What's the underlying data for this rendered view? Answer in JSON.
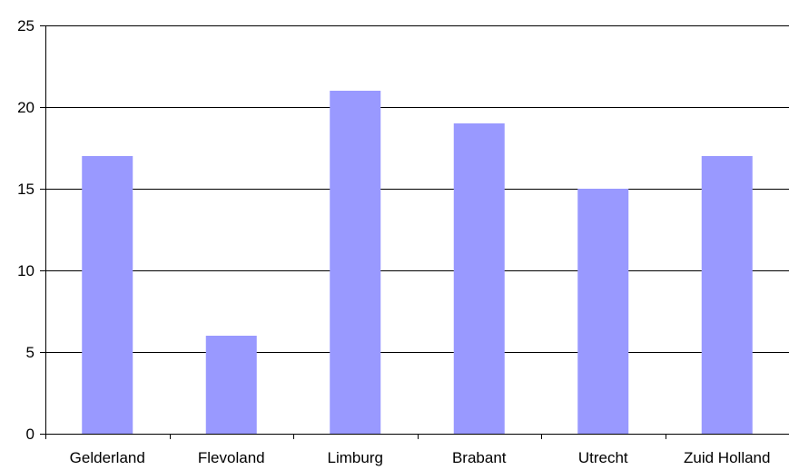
{
  "chart_data": {
    "type": "bar",
    "categories": [
      "Gelderland",
      "Flevoland",
      "Limburg",
      "Brabant",
      "Utrecht",
      "Zuid Holland"
    ],
    "values": [
      17,
      6,
      21,
      19,
      15,
      17
    ],
    "ylim": [
      0,
      25
    ],
    "yticks": [
      0,
      5,
      10,
      15,
      20,
      25
    ],
    "ytick_labels": [
      "0",
      "5",
      "10",
      "15",
      "20",
      "25"
    ],
    "grid": true,
    "legend": false,
    "colors": {
      "bar": "#9999ff",
      "grid": "#000000",
      "axis": "#000000"
    }
  }
}
